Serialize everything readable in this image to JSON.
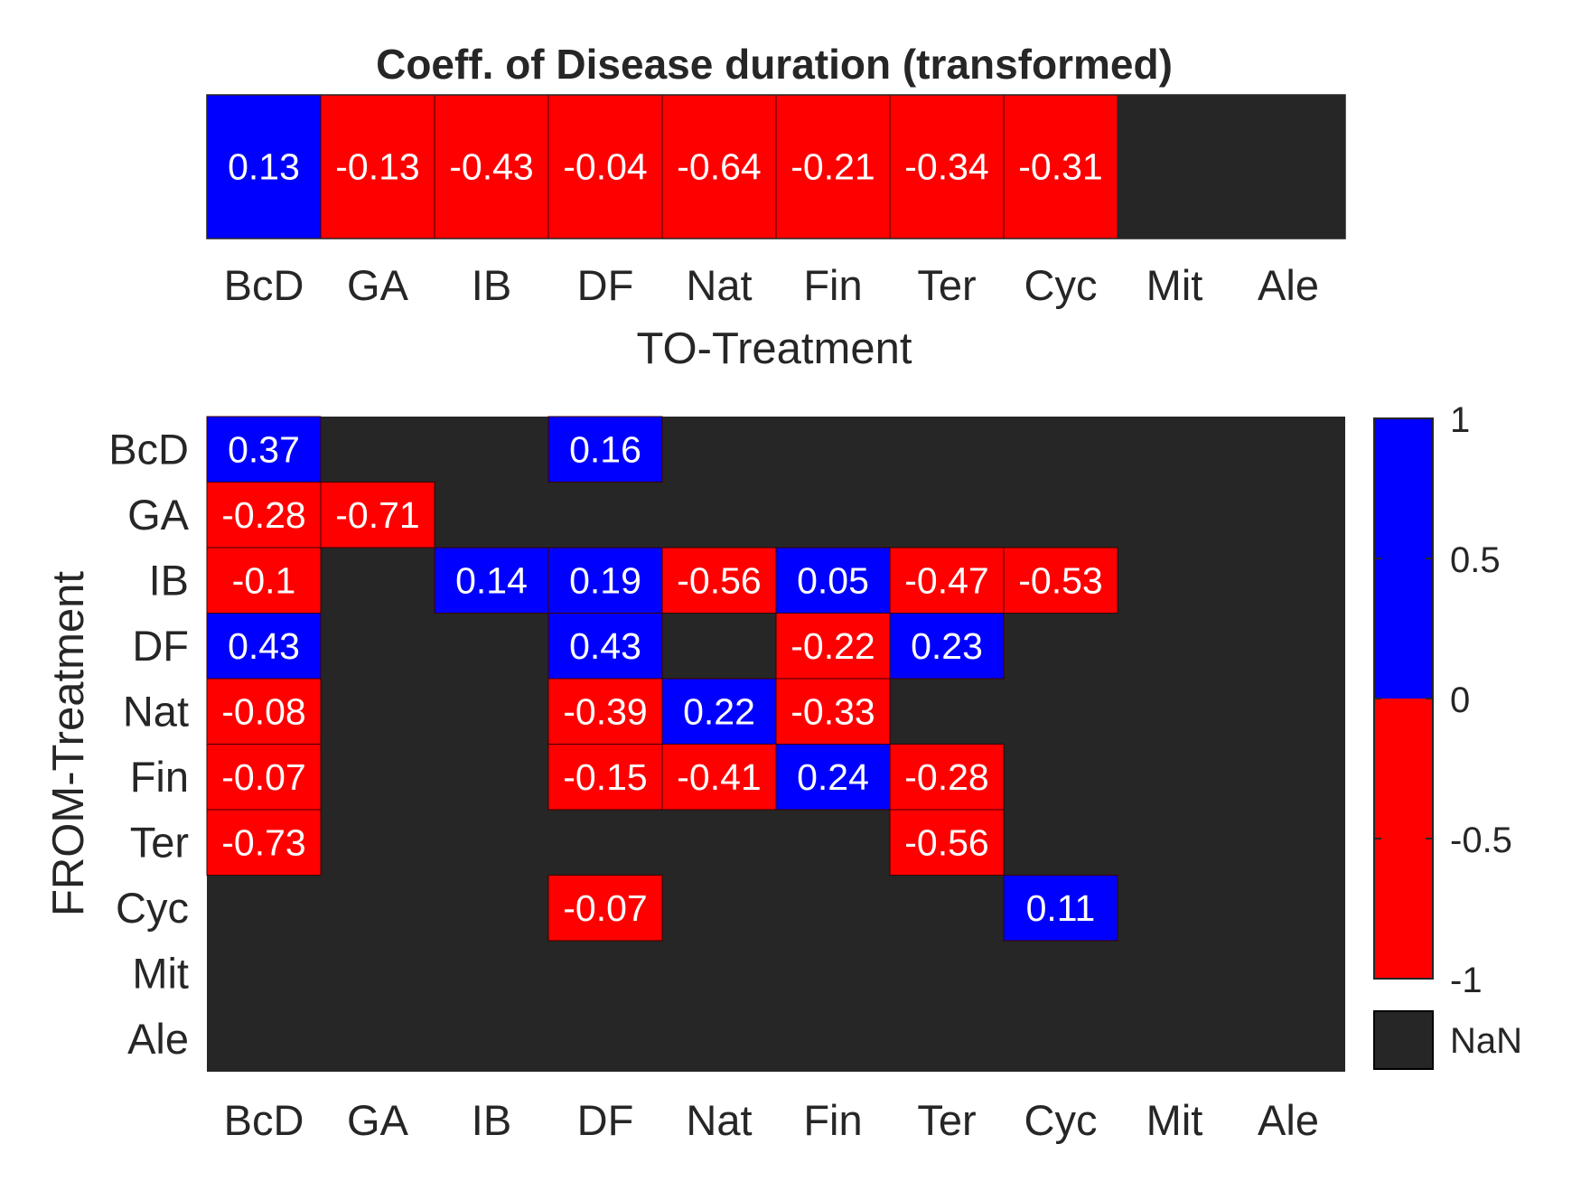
{
  "chart_data": [
    {
      "type": "heatmap",
      "title": "Coeff. of Disease duration (transformed)",
      "xlabel": "TO-Treatment",
      "ylabel": "",
      "categories": [
        "BcD",
        "GA",
        "IB",
        "DF",
        "Nat",
        "Fin",
        "Ter",
        "Cyc",
        "Mit",
        "Ale"
      ],
      "values": [
        0.13,
        -0.13,
        -0.43,
        -0.04,
        -0.64,
        -0.21,
        -0.34,
        -0.31,
        null,
        null
      ]
    },
    {
      "type": "heatmap",
      "title": "",
      "xlabel": "",
      "ylabel": "FROM-Treatment",
      "x_categories": [
        "BcD",
        "GA",
        "IB",
        "DF",
        "Nat",
        "Fin",
        "Ter",
        "Cyc",
        "Mit",
        "Ale"
      ],
      "y_categories": [
        "BcD",
        "GA",
        "IB",
        "DF",
        "Nat",
        "Fin",
        "Ter",
        "Cyc",
        "Mit",
        "Ale"
      ],
      "values": [
        [
          0.37,
          null,
          null,
          0.16,
          null,
          null,
          null,
          null,
          null,
          null
        ],
        [
          -0.28,
          -0.71,
          null,
          null,
          null,
          null,
          null,
          null,
          null,
          null
        ],
        [
          -0.1,
          null,
          0.14,
          0.19,
          -0.56,
          0.05,
          -0.47,
          -0.53,
          null,
          null
        ],
        [
          0.43,
          null,
          null,
          0.43,
          null,
          -0.22,
          0.23,
          null,
          null,
          null
        ],
        [
          -0.08,
          null,
          null,
          -0.39,
          0.22,
          -0.33,
          null,
          null,
          null,
          null
        ],
        [
          -0.07,
          null,
          null,
          -0.15,
          -0.41,
          0.24,
          -0.28,
          null,
          null,
          null
        ],
        [
          -0.73,
          null,
          null,
          null,
          null,
          null,
          -0.56,
          null,
          null,
          null
        ],
        [
          null,
          null,
          null,
          -0.07,
          null,
          null,
          null,
          0.11,
          null,
          null
        ],
        [
          null,
          null,
          null,
          null,
          null,
          null,
          null,
          null,
          null,
          null
        ],
        [
          null,
          null,
          null,
          null,
          null,
          null,
          null,
          null,
          null,
          null
        ]
      ]
    }
  ],
  "colorbar": {
    "ticks": [
      "1",
      "0.5",
      "0",
      "-0.5",
      "-1"
    ],
    "range": [
      -1,
      1
    ],
    "nan_label": "NaN"
  },
  "colors": {
    "positive": "#0000ff",
    "negative": "#ff0000",
    "nan": "#262626",
    "cell_text": "#ffffff",
    "axis_text": "#262626"
  }
}
